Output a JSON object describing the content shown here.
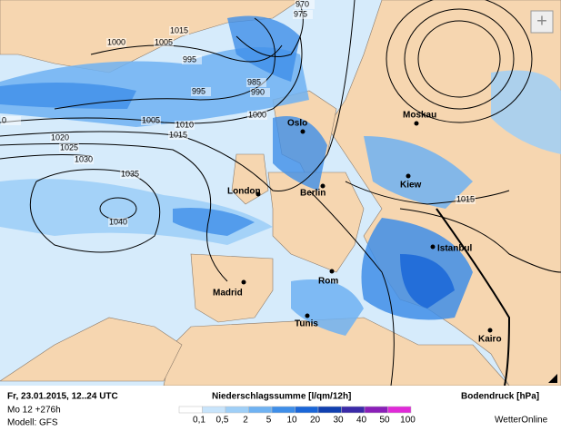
{
  "map": {
    "isobar_labels": [
      "970",
      "975",
      "1015",
      "1000",
      "1005",
      "995",
      "985",
      "990",
      "995",
      "1000",
      "1005",
      "1010",
      "1015",
      "1020",
      "1025",
      "1030",
      "1035",
      "1040",
      "1015",
      "0"
    ],
    "cities": [
      "Oslo",
      "Moskau",
      "London",
      "Berlin",
      "Kiew",
      "Istanbul",
      "Madrid",
      "Rom",
      "Tunis",
      "Kairo"
    ]
  },
  "footer": {
    "date": "Fr, 23.01.2015, 12..24 UTC",
    "run": "Mo 12 +276h",
    "model": "Modell: GFS",
    "precip_title": "Niederschlagssumme [l/qm/12h]",
    "pressure_title": "Bodendruck [hPa]",
    "brand": "WetterOnline",
    "legend": [
      {
        "label": "0,1",
        "color": "#ffffff"
      },
      {
        "label": "0,5",
        "color": "#c8e4fb"
      },
      {
        "label": "2",
        "color": "#9fcff7"
      },
      {
        "label": "5",
        "color": "#6fb2f2"
      },
      {
        "label": "10",
        "color": "#3f8ee8"
      },
      {
        "label": "20",
        "color": "#1a66d8"
      },
      {
        "label": "30",
        "color": "#1040b0"
      },
      {
        "label": "40",
        "color": "#3a2aa8"
      },
      {
        "label": "50",
        "color": "#8a1fb8"
      },
      {
        "label": "100",
        "color": "#e02ad8"
      }
    ]
  },
  "controls": {
    "zoom": "+"
  }
}
